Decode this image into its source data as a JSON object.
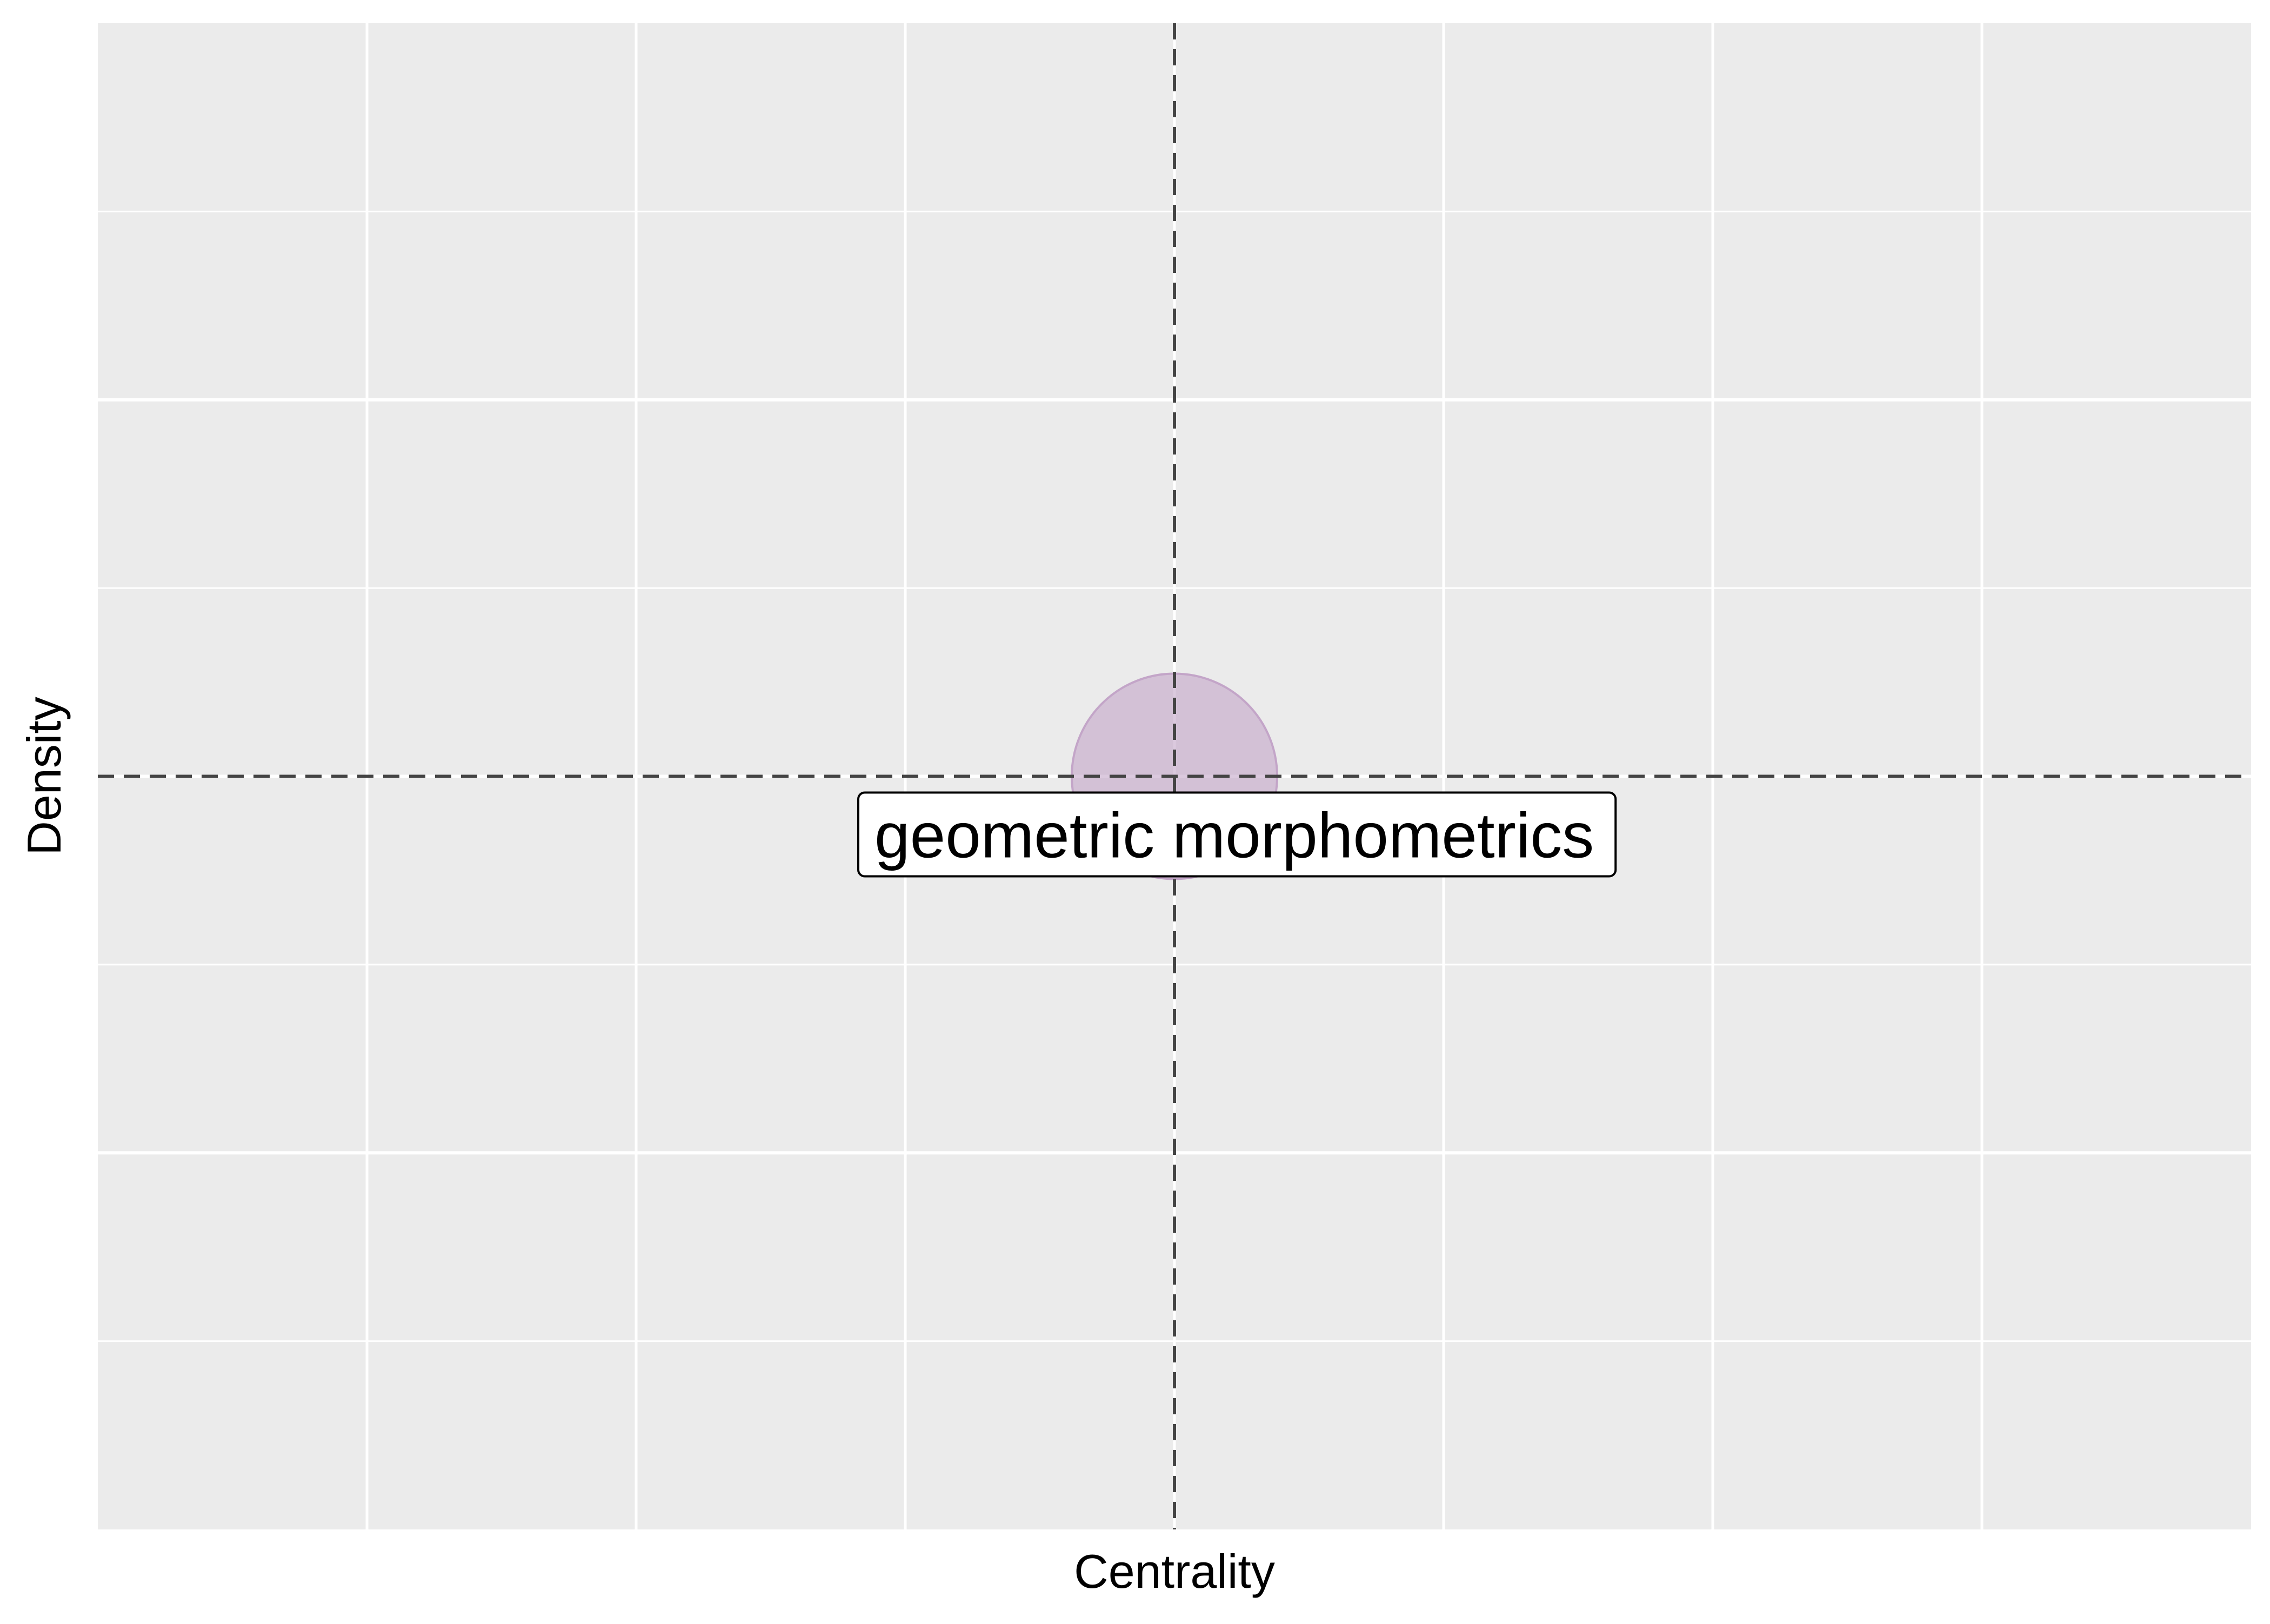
{
  "chart_data": {
    "type": "scatter",
    "title": "",
    "xlabel": "Centrality",
    "ylabel": "Density",
    "xlim": [
      -1,
      1
    ],
    "ylim": [
      -1,
      1
    ],
    "grid": true,
    "reference_lines": {
      "x": 0,
      "y": 0
    },
    "points": [
      {
        "label": "geometric morphometrics",
        "x": 0,
        "y": 0,
        "color": "#C3A5C8"
      }
    ]
  },
  "colors": {
    "panel_background": "#EBEBEB",
    "grid": "#FFFFFF",
    "reference_line": "#444444",
    "label_border": "#000000",
    "label_background": "#FFFFFF"
  }
}
